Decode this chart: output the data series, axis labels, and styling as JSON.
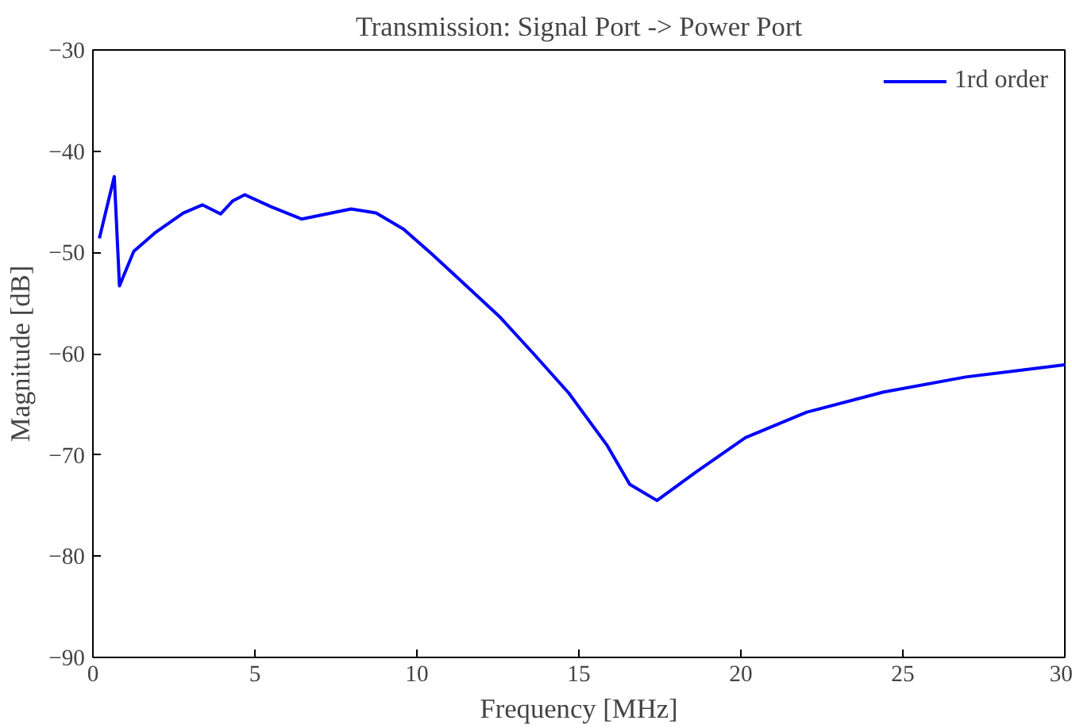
{
  "chart_data": {
    "type": "line",
    "title": "Transmission: Signal Port -> Power Port",
    "xlabel": "Frequency [MHz]",
    "ylabel": "Magnitude [dB]",
    "x": [
      0.2,
      0.66,
      0.82,
      1.26,
      1.94,
      2.79,
      3.38,
      3.94,
      4.32,
      4.69,
      5.51,
      6.44,
      7.97,
      8.74,
      9.59,
      10.44,
      11.29,
      12.57,
      13.6,
      14.69,
      15.88,
      16.57,
      17.41,
      18.61,
      20.14,
      22.01,
      24.39,
      26.94,
      30
    ],
    "series": [
      {
        "name": "1rd order",
        "color": "#0000ff",
        "values": [
          -48.6,
          -42.5,
          -53.3,
          -49.9,
          -48.0,
          -46.1,
          -45.3,
          -46.2,
          -44.9,
          -44.3,
          -45.5,
          -46.7,
          -45.7,
          -46.1,
          -47.7,
          -50.1,
          -52.6,
          -56.4,
          -60.0,
          -63.9,
          -69.1,
          -72.9,
          -74.5,
          -71.7,
          -68.3,
          -65.8,
          -63.8,
          -62.3,
          -61.1
        ]
      }
    ],
    "xlim": [
      0,
      30
    ],
    "xticks": [
      0,
      5,
      10,
      15,
      20,
      25,
      30
    ],
    "ylim": [
      -90,
      -30
    ],
    "yticks": [
      -90,
      -80,
      -70,
      -60,
      -50,
      -40,
      -30
    ],
    "grid": false,
    "legend": "top right",
    "marker": "none",
    "line_style": "solid"
  }
}
